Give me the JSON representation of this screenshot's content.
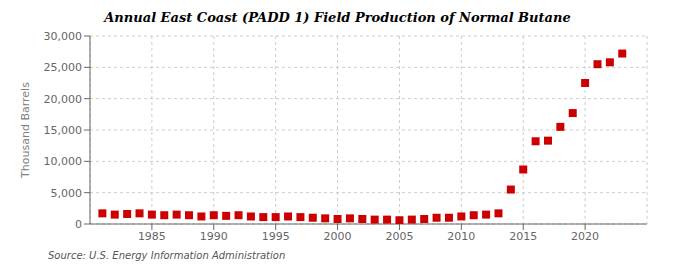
{
  "chart_data": {
    "type": "scatter",
    "title": "Annual East Coast (PADD 1) Field Production of Normal Butane",
    "ylabel": "Thousand Barrels",
    "source": "Source: U.S. Energy Information Administration",
    "x": [
      1981,
      1982,
      1983,
      1984,
      1985,
      1986,
      1987,
      1988,
      1989,
      1990,
      1991,
      1992,
      1993,
      1994,
      1995,
      1996,
      1997,
      1998,
      1999,
      2000,
      2001,
      2002,
      2003,
      2004,
      2005,
      2006,
      2007,
      2008,
      2009,
      2010,
      2011,
      2012,
      2013,
      2014,
      2015,
      2016,
      2017,
      2018,
      2019,
      2020,
      2021,
      2022,
      2023
    ],
    "values": [
      1700,
      1500,
      1600,
      1700,
      1500,
      1400,
      1500,
      1400,
      1200,
      1400,
      1300,
      1400,
      1200,
      1100,
      1100,
      1200,
      1100,
      1000,
      900,
      800,
      900,
      800,
      700,
      700,
      600,
      700,
      800,
      1000,
      1000,
      1200,
      1400,
      1500,
      1700,
      5500,
      8700,
      13200,
      13300,
      15500,
      17700,
      22500,
      25500,
      25800,
      27200
    ],
    "color": "#cc0000",
    "marker": "square",
    "xlim": [
      1980,
      2025
    ],
    "xticks": [
      1985,
      1990,
      1995,
      2000,
      2005,
      2010,
      2015,
      2020
    ],
    "ylim": [
      0,
      30000
    ],
    "yticks": [
      0,
      {
        "value": 5000,
        "label": "5,000"
      },
      {
        "value": 10000,
        "label": "10,000"
      },
      {
        "value": 15000,
        "label": "15,000"
      },
      {
        "value": 20000,
        "label": "20,000"
      },
      {
        "value": 25000,
        "label": "25,000"
      },
      {
        "value": 30000,
        "label": "30,000"
      }
    ],
    "grid": true
  }
}
